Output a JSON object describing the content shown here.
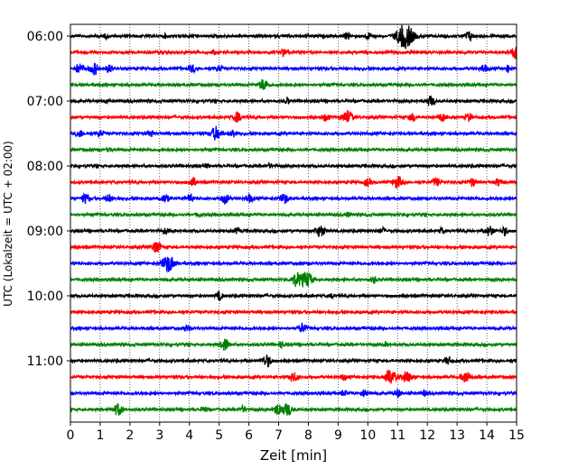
{
  "chart_data": {
    "type": "line",
    "title": "",
    "xlabel": "Zeit  [min]",
    "ylabel": "UTC (Lokalzeit = UTC + 02:00)",
    "xlim": [
      0,
      15
    ],
    "xticks": [
      "0",
      "1",
      "2",
      "3",
      "4",
      "5",
      "6",
      "7",
      "8",
      "9",
      "10",
      "11",
      "12",
      "13",
      "14",
      "15"
    ],
    "yticks": [
      {
        "label": "06:00",
        "trace": 0
      },
      {
        "label": "07:00",
        "trace": 4
      },
      {
        "label": "08:00",
        "trace": 8
      },
      {
        "label": "09:00",
        "trace": 12
      },
      {
        "label": "10:00",
        "trace": 16
      },
      {
        "label": "11:00",
        "trace": 20
      }
    ],
    "grid": {
      "x": true,
      "y": false
    },
    "trace_colors": [
      "#000000",
      "#ff0000",
      "#0000ff",
      "#008000"
    ],
    "trace_minutes": 15,
    "traces": [
      {
        "start": "06:00",
        "bursts": [
          [
            1.2,
            2
          ],
          [
            3.2,
            1.5
          ],
          [
            9.3,
            3
          ],
          [
            10,
            3
          ],
          [
            11.25,
            13
          ],
          [
            13.4,
            5
          ]
        ]
      },
      {
        "start": "06:15",
        "bursts": [
          [
            4.8,
            2
          ],
          [
            7.2,
            4
          ],
          [
            15,
            7
          ]
        ]
      },
      {
        "start": "06:30",
        "bursts": [
          [
            0.3,
            5
          ],
          [
            0.8,
            6
          ],
          [
            1.3,
            4
          ],
          [
            4.1,
            4
          ],
          [
            5.0,
            3
          ],
          [
            13.9,
            4
          ],
          [
            14.7,
            3
          ]
        ]
      },
      {
        "start": "06:45",
        "bursts": [
          [
            6.5,
            6
          ]
        ]
      },
      {
        "start": "07:00",
        "bursts": [
          [
            1.2,
            2
          ],
          [
            7.3,
            3
          ],
          [
            12.1,
            5
          ]
        ]
      },
      {
        "start": "07:15",
        "bursts": [
          [
            5.6,
            5
          ],
          [
            8.6,
            4
          ],
          [
            9.3,
            7
          ],
          [
            11.5,
            4
          ],
          [
            12.5,
            4
          ],
          [
            13.4,
            4
          ]
        ]
      },
      {
        "start": "07:30",
        "bursts": [
          [
            0.3,
            4
          ],
          [
            1.0,
            3
          ],
          [
            2.7,
            3
          ],
          [
            4.9,
            7
          ],
          [
            5.5,
            4
          ]
        ]
      },
      {
        "start": "07:45",
        "bursts": [
          [
            1.3,
            2
          ]
        ]
      },
      {
        "start": "08:00",
        "bursts": [
          [
            4.6,
            2
          ],
          [
            6.7,
            2
          ]
        ]
      },
      {
        "start": "08:15",
        "bursts": [
          [
            4.1,
            5
          ],
          [
            10.0,
            4
          ],
          [
            11.0,
            6
          ],
          [
            12.3,
            4
          ],
          [
            13.5,
            4
          ],
          [
            14.4,
            4
          ]
        ]
      },
      {
        "start": "08:30",
        "bursts": [
          [
            0.5,
            5
          ],
          [
            1.3,
            4
          ],
          [
            3.2,
            4
          ],
          [
            4.0,
            4
          ],
          [
            5.2,
            5
          ],
          [
            6.0,
            4
          ],
          [
            7.2,
            5
          ]
        ]
      },
      {
        "start": "08:45",
        "bursts": [
          [
            4.3,
            2
          ],
          [
            9.3,
            2
          ]
        ]
      },
      {
        "start": "09:00",
        "bursts": [
          [
            3.2,
            3
          ],
          [
            5.6,
            3
          ],
          [
            8.4,
            6
          ],
          [
            10.5,
            3
          ],
          [
            12.5,
            3
          ],
          [
            14.1,
            5
          ],
          [
            14.6,
            4
          ]
        ]
      },
      {
        "start": "09:15",
        "bursts": [
          [
            2.9,
            6
          ]
        ]
      },
      {
        "start": "09:30",
        "bursts": [
          [
            3.3,
            9
          ]
        ]
      },
      {
        "start": "09:45",
        "bursts": [
          [
            7.6,
            7
          ],
          [
            7.95,
            8
          ],
          [
            10.2,
            3
          ]
        ]
      },
      {
        "start": "10:00",
        "bursts": [
          [
            5.0,
            4
          ],
          [
            8.8,
            2
          ]
        ]
      },
      {
        "start": "10:15",
        "bursts": []
      },
      {
        "start": "10:30",
        "bursts": [
          [
            3.9,
            3
          ],
          [
            7.8,
            5
          ]
        ]
      },
      {
        "start": "10:45",
        "bursts": [
          [
            5.2,
            6
          ],
          [
            7.1,
            3
          ],
          [
            10.6,
            2
          ]
        ]
      },
      {
        "start": "11:00",
        "bursts": [
          [
            6.6,
            6
          ],
          [
            12.7,
            4
          ]
        ]
      },
      {
        "start": "11:15",
        "bursts": [
          [
            7.5,
            5
          ],
          [
            9.2,
            3
          ],
          [
            10.75,
            8
          ],
          [
            11.3,
            6
          ],
          [
            13.3,
            6
          ]
        ]
      },
      {
        "start": "11:30",
        "bursts": [
          [
            9.2,
            3
          ],
          [
            9.9,
            4
          ],
          [
            11.0,
            4
          ],
          [
            11.9,
            3
          ]
        ]
      },
      {
        "start": "11:45",
        "bursts": [
          [
            1.6,
            6
          ],
          [
            4.5,
            3
          ],
          [
            5.8,
            3
          ],
          [
            7.0,
            6
          ],
          [
            7.3,
            6
          ]
        ]
      }
    ]
  }
}
